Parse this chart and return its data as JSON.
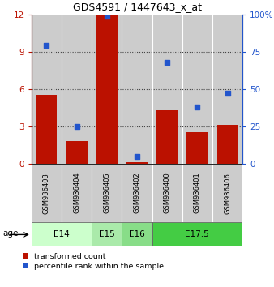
{
  "title": "GDS4591 / 1447643_x_at",
  "samples": [
    "GSM936403",
    "GSM936404",
    "GSM936405",
    "GSM936402",
    "GSM936400",
    "GSM936401",
    "GSM936406"
  ],
  "red_values": [
    5.5,
    1.8,
    12.0,
    0.1,
    4.3,
    2.5,
    3.1
  ],
  "blue_values": [
    79,
    25,
    99,
    5,
    68,
    38,
    47
  ],
  "age_groups": [
    {
      "label": "E14",
      "start": 0,
      "end": 2,
      "color": "#ccffcc"
    },
    {
      "label": "E15",
      "start": 2,
      "end": 3,
      "color": "#aaeaaa"
    },
    {
      "label": "E16",
      "start": 3,
      "end": 4,
      "color": "#88dd88"
    },
    {
      "label": "E17.5",
      "start": 4,
      "end": 7,
      "color": "#44cc44"
    }
  ],
  "ylim_left": [
    0,
    12
  ],
  "ylim_right": [
    0,
    100
  ],
  "yticks_left": [
    0,
    3,
    6,
    9,
    12
  ],
  "yticks_right": [
    0,
    25,
    50,
    75,
    100
  ],
  "ytick_labels_right": [
    "0",
    "25",
    "50",
    "75",
    "100%"
  ],
  "red_color": "#bb1100",
  "blue_color": "#2255cc",
  "bar_bg_color": "#cccccc",
  "bar_sep_color": "#ffffff",
  "dotted_line_color": "#444444",
  "legend_red_label": "transformed count",
  "legend_blue_label": "percentile rank within the sample",
  "age_label": "age",
  "background_color": "#ffffff"
}
